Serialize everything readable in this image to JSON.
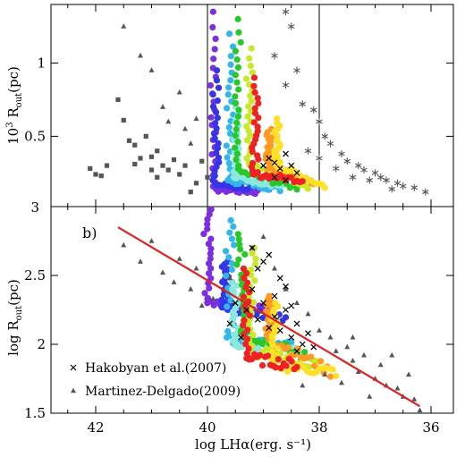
{
  "chart_data": [
    {
      "type": "scatter",
      "panel": "top",
      "ylabel": "10³ R_out(pc)",
      "xlim": [
        42.8,
        35.6
      ],
      "ylim": [
        0.02,
        1.4
      ],
      "yticks": [
        {
          "v": 0.5,
          "label": "0.5"
        },
        {
          "v": 1.0,
          "label": "1"
        }
      ],
      "bottom_corner_label": "3",
      "selection_box_x": [
        40.0,
        38.0
      ],
      "series": [
        {
          "name": "",
          "marker": "square",
          "color": "#555555",
          "points": [
            [
              42.1,
              0.28
            ],
            [
              42.0,
              0.24
            ],
            [
              41.9,
              0.23
            ],
            [
              41.8,
              0.3
            ],
            [
              41.6,
              0.75
            ],
            [
              41.5,
              0.61
            ],
            [
              41.4,
              0.47
            ],
            [
              41.3,
              0.44
            ],
            [
              41.3,
              0.31
            ],
            [
              41.2,
              0.35
            ],
            [
              41.1,
              0.5
            ],
            [
              41.0,
              0.27
            ],
            [
              41.0,
              0.36
            ],
            [
              40.9,
              0.4
            ],
            [
              40.9,
              0.22
            ],
            [
              40.8,
              0.3
            ],
            [
              40.7,
              0.27
            ],
            [
              40.6,
              0.34
            ],
            [
              40.5,
              0.24
            ],
            [
              40.4,
              0.3
            ],
            [
              40.3,
              0.12
            ],
            [
              40.2,
              0.18
            ],
            [
              40.1,
              0.33
            ],
            [
              40.0,
              0.22
            ]
          ]
        },
        {
          "name": "",
          "marker": "triangle",
          "color": "#555555",
          "points": [
            [
              41.5,
              1.25
            ],
            [
              41.2,
              1.05
            ],
            [
              41.0,
              0.95
            ],
            [
              40.8,
              0.7
            ],
            [
              40.7,
              0.6
            ],
            [
              40.5,
              0.8
            ],
            [
              40.4,
              0.55
            ],
            [
              40.3,
              0.45
            ],
            [
              40.2,
              0.62
            ]
          ]
        },
        {
          "name": "",
          "marker": "asterisk",
          "color": "#555555",
          "points": [
            [
              38.6,
              1.35
            ],
            [
              38.5,
              1.25
            ],
            [
              38.8,
              1.05
            ],
            [
              38.4,
              0.95
            ],
            [
              38.6,
              0.85
            ],
            [
              38.3,
              0.72
            ],
            [
              38.1,
              0.68
            ],
            [
              38.0,
              0.6
            ],
            [
              37.9,
              0.5
            ],
            [
              37.8,
              0.45
            ],
            [
              37.6,
              0.38
            ],
            [
              37.5,
              0.33
            ],
            [
              37.3,
              0.3
            ],
            [
              37.2,
              0.27
            ],
            [
              37.0,
              0.25
            ],
            [
              36.9,
              0.22
            ],
            [
              36.8,
              0.2
            ],
            [
              36.6,
              0.18
            ],
            [
              36.5,
              0.16
            ],
            [
              36.3,
              0.15
            ],
            [
              36.1,
              0.12
            ],
            [
              38.2,
              0.4
            ],
            [
              38.0,
              0.35
            ],
            [
              37.7,
              0.28
            ],
            [
              37.4,
              0.22
            ],
            [
              37.1,
              0.2
            ],
            [
              36.7,
              0.14
            ]
          ]
        },
        {
          "name": "",
          "marker": "x",
          "color": "#000000",
          "points": [
            [
              39.0,
              0.3
            ],
            [
              38.9,
              0.35
            ],
            [
              38.8,
              0.32
            ],
            [
              38.7,
              0.28
            ],
            [
              38.6,
              0.38
            ],
            [
              38.5,
              0.3
            ],
            [
              38.4,
              0.25
            ],
            [
              38.8,
              0.22
            ],
            [
              38.6,
              0.2
            ]
          ]
        }
      ],
      "tracks": [
        {
          "color": "#7b2fe0",
          "x0": 39.9,
          "yTop": 1.35,
          "yMin": 0.14,
          "xEnd": 39.1,
          "yEnd": 0.12
        },
        {
          "color": "#3535e8",
          "x0": 39.85,
          "yTop": 0.95,
          "yMin": 0.17,
          "xEnd": 38.9,
          "yEnd": 0.13
        },
        {
          "color": "#33b7e8",
          "x0": 39.6,
          "yTop": 1.2,
          "yMin": 0.2,
          "xEnd": 38.7,
          "yEnd": 0.14
        },
        {
          "color": "#8ae8e0",
          "x0": 39.5,
          "yTop": 0.7,
          "yMin": 0.22,
          "xEnd": 38.6,
          "yEnd": 0.16
        },
        {
          "color": "#28c828",
          "x0": 39.45,
          "yTop": 1.3,
          "yMin": 0.26,
          "xEnd": 38.4,
          "yEnd": 0.15
        },
        {
          "color": "#c8e828",
          "x0": 39.25,
          "yTop": 1.1,
          "yMin": 0.32,
          "xEnd": 38.2,
          "yEnd": 0.16
        },
        {
          "color": "#ff9922",
          "x0": 38.9,
          "yTop": 0.55,
          "yMin": 0.28,
          "xEnd": 38.1,
          "yEnd": 0.18
        },
        {
          "color": "#ffe028",
          "x0": 38.75,
          "yTop": 0.62,
          "yMin": 0.3,
          "xEnd": 37.9,
          "yEnd": 0.16
        },
        {
          "color": "#ee2222",
          "x0": 39.15,
          "yTop": 0.9,
          "yMin": 0.24,
          "xEnd": 38.3,
          "yEnd": 0.2
        }
      ]
    },
    {
      "type": "scatter",
      "panel": "bottom",
      "panel_label": "b)",
      "xlabel": "log LHα(erg. s⁻¹)",
      "ylabel": "log R_out(pc)",
      "xlim": [
        42.8,
        35.6
      ],
      "ylim": [
        1.5,
        3.0
      ],
      "xticks": [
        42,
        40,
        38,
        36
      ],
      "yticks": [
        {
          "v": 1.5,
          "label": "1.5"
        },
        {
          "v": 2.0,
          "label": "2"
        },
        {
          "v": 2.5,
          "label": "2.5"
        }
      ],
      "top_corner_label": "3",
      "legend": [
        {
          "marker": "x",
          "label": "Hakobyan et al.(2007)"
        },
        {
          "marker": "triangle",
          "label": "Martinez-Delgado(2009)"
        }
      ],
      "fit_line": {
        "color": "#dd2222",
        "points": [
          [
            41.6,
            2.85
          ],
          [
            36.2,
            1.55
          ]
        ]
      },
      "series": [
        {
          "name": "Martinez-Delgado(2009)",
          "marker": "triangle",
          "color": "#555555",
          "points": [
            [
              41.5,
              2.72
            ],
            [
              41.2,
              2.6
            ],
            [
              41.0,
              2.75
            ],
            [
              40.8,
              2.52
            ],
            [
              40.6,
              2.45
            ],
            [
              40.5,
              2.62
            ],
            [
              40.3,
              2.4
            ],
            [
              40.2,
              2.55
            ],
            [
              40.1,
              2.28
            ],
            [
              39.9,
              2.33
            ],
            [
              39.6,
              2.48
            ],
            [
              39.2,
              2.7
            ],
            [
              39.0,
              2.78
            ],
            [
              38.8,
              2.55
            ],
            [
              38.6,
              2.4
            ],
            [
              38.4,
              2.3
            ],
            [
              38.2,
              2.22
            ],
            [
              38.0,
              2.1
            ],
            [
              37.8,
              2.05
            ],
            [
              37.7,
              1.95
            ],
            [
              37.5,
              1.98
            ],
            [
              37.4,
              1.88
            ],
            [
              37.3,
              1.8
            ],
            [
              37.2,
              1.92
            ],
            [
              37.0,
              1.75
            ],
            [
              36.9,
              1.85
            ],
            [
              36.8,
              1.7
            ],
            [
              36.6,
              1.68
            ],
            [
              36.5,
              1.62
            ],
            [
              36.3,
              1.6
            ],
            [
              36.2,
              1.52
            ],
            [
              37.6,
              1.72
            ],
            [
              37.1,
              1.62
            ],
            [
              38.3,
              1.7
            ],
            [
              37.9,
              1.78
            ],
            [
              36.7,
              1.92
            ],
            [
              37.4,
              2.05
            ],
            [
              36.4,
              1.78
            ]
          ]
        },
        {
          "name": "Hakobyan et al.(2007)",
          "marker": "x",
          "color": "#000000",
          "points": [
            [
              39.5,
              2.3
            ],
            [
              39.3,
              2.25
            ],
            [
              39.2,
              2.4
            ],
            [
              39.1,
              2.18
            ],
            [
              39.0,
              2.3
            ],
            [
              38.9,
              2.12
            ],
            [
              38.8,
              2.35
            ],
            [
              38.8,
              2.2
            ],
            [
              38.7,
              2.1
            ],
            [
              38.6,
              2.25
            ],
            [
              38.5,
              2.05
            ],
            [
              38.4,
              2.15
            ],
            [
              38.3,
              2.0
            ],
            [
              38.2,
              2.08
            ],
            [
              38.1,
              1.98
            ],
            [
              39.0,
              2.6
            ],
            [
              38.9,
              2.65
            ],
            [
              39.1,
              2.55
            ],
            [
              38.7,
              2.48
            ],
            [
              38.6,
              2.42
            ],
            [
              39.4,
              2.05
            ],
            [
              39.6,
              2.15
            ],
            [
              38.4,
              1.95
            ],
            [
              38.5,
              2.28
            ],
            [
              39.2,
              2.7
            ]
          ]
        }
      ],
      "tracks": [
        {
          "color": "#7b2fe0",
          "x0": 40.0,
          "yTop": 2.98,
          "yMid": 2.3,
          "xEnd": 38.9,
          "yEnd": 2.25
        },
        {
          "color": "#3535e8",
          "x0": 39.7,
          "yTop": 2.6,
          "yMid": 2.25,
          "xEnd": 38.6,
          "yEnd": 2.2
        },
        {
          "color": "#33b7e8",
          "x0": 39.6,
          "yTop": 2.9,
          "yMid": 2.05,
          "xEnd": 38.5,
          "yEnd": 2.0
        },
        {
          "color": "#8ae8e0",
          "x0": 39.5,
          "yTop": 2.45,
          "yMid": 2.0,
          "xEnd": 38.4,
          "yEnd": 1.95
        },
        {
          "color": "#28c828",
          "x0": 39.4,
          "yTop": 2.8,
          "yMid": 2.1,
          "xEnd": 38.2,
          "yEnd": 1.9
        },
        {
          "color": "#c8e828",
          "x0": 39.2,
          "yTop": 2.7,
          "yMid": 1.95,
          "xEnd": 38.0,
          "yEnd": 1.85
        },
        {
          "color": "#ff9922",
          "x0": 38.9,
          "yTop": 2.35,
          "yMid": 2.05,
          "xEnd": 37.8,
          "yEnd": 1.8
        },
        {
          "color": "#ffe028",
          "x0": 38.8,
          "yTop": 2.3,
          "yMid": 1.85,
          "xEnd": 37.7,
          "yEnd": 1.8
        },
        {
          "color": "#ee2222",
          "x0": 39.3,
          "yTop": 2.55,
          "yMid": 1.9,
          "xEnd": 38.4,
          "yEnd": 1.85
        }
      ]
    }
  ]
}
